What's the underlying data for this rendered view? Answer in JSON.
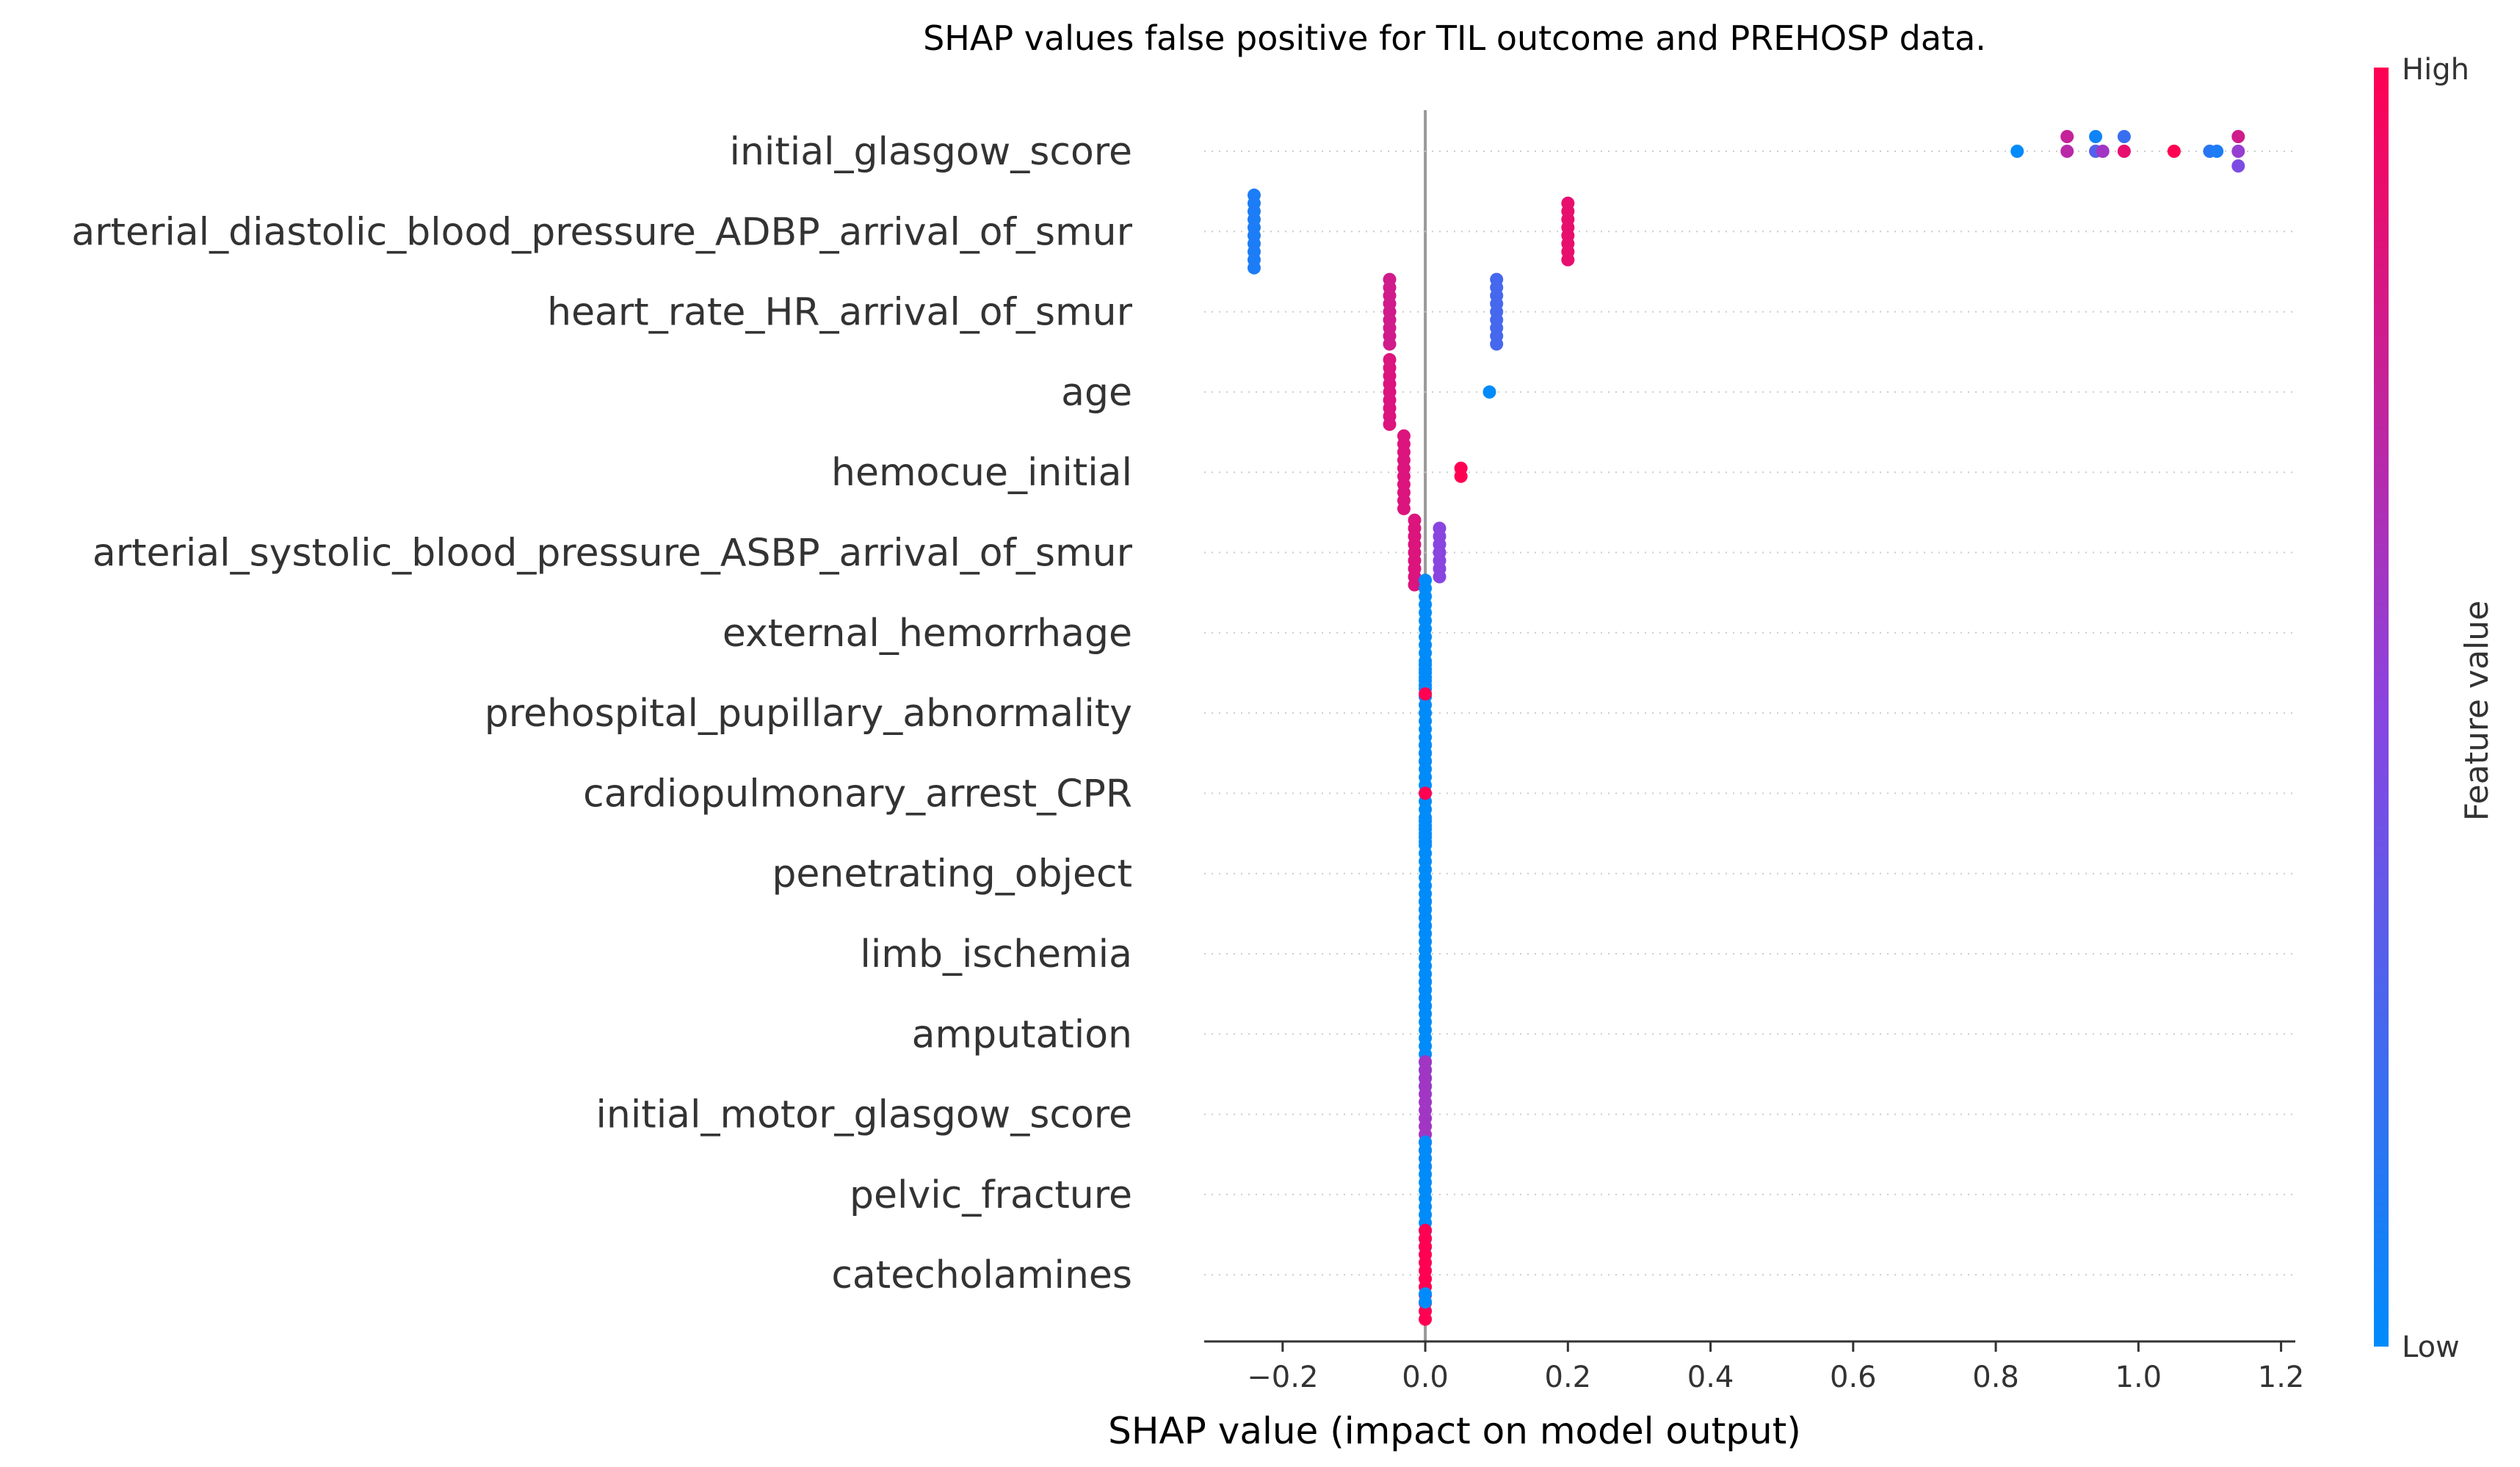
{
  "chart_data": {
    "type": "scatter",
    "title": "SHAP values false positive for TIL outcome and PREHOSP data.",
    "xlabel": "SHAP value (impact on model output)",
    "xlim": [
      -0.31,
      1.22
    ],
    "xticks": [
      -0.2,
      0.0,
      0.2,
      0.4,
      0.6,
      0.8,
      1.0,
      1.2
    ],
    "xtick_labels": [
      "−0.2",
      "0.0",
      "0.2",
      "0.4",
      "0.6",
      "0.8",
      "1.0",
      "1.2"
    ],
    "colorbar": {
      "title": "Feature value",
      "high_label": "High",
      "low_label": "Low",
      "low_color": "#008bfb",
      "high_color": "#ff0052"
    },
    "grid": "dotted horizontal guides",
    "features": [
      {
        "name": "initial_glasgow_score",
        "points": [
          {
            "x": 0.83,
            "c": 0.0
          },
          {
            "x": 0.9,
            "c": 0.75
          },
          {
            "x": 0.9,
            "c": 0.7
          },
          {
            "x": 0.94,
            "c": 0.05
          },
          {
            "x": 0.94,
            "c": 0.3
          },
          {
            "x": 0.95,
            "c": 0.6
          },
          {
            "x": 0.98,
            "c": 0.2
          },
          {
            "x": 0.98,
            "c": 0.9
          },
          {
            "x": 1.05,
            "c": 1.0
          },
          {
            "x": 1.1,
            "c": 0.15
          },
          {
            "x": 1.11,
            "c": 0.1
          },
          {
            "x": 1.14,
            "c": 0.8
          },
          {
            "x": 1.14,
            "c": 0.55
          },
          {
            "x": 1.14,
            "c": 0.45
          }
        ]
      },
      {
        "name": "arterial_diastolic_blood_pressure_ADBP_arrival_of_smur",
        "points": [
          {
            "x": -0.24,
            "c": 0.1,
            "n": 10
          },
          {
            "x": 0.2,
            "c": 0.9,
            "n": 8
          }
        ]
      },
      {
        "name": "heart_rate_HR_arrival_of_smur",
        "points": [
          {
            "x": -0.05,
            "c": 0.8,
            "n": 9
          },
          {
            "x": 0.1,
            "c": 0.25,
            "n": 9
          }
        ]
      },
      {
        "name": "age",
        "points": [
          {
            "x": -0.05,
            "c": 0.85,
            "n": 9
          },
          {
            "x": 0.09,
            "c": 0.0,
            "n": 1
          }
        ]
      },
      {
        "name": "hemocue_initial",
        "points": [
          {
            "x": -0.03,
            "c": 0.85,
            "n": 10
          },
          {
            "x": 0.05,
            "c": 1.0,
            "n": 2
          }
        ]
      },
      {
        "name": "arterial_systolic_blood_pressure_ASBP_arrival_of_smur",
        "points": [
          {
            "x": -0.015,
            "c": 0.85,
            "n": 9
          },
          {
            "x": 0.02,
            "c": 0.5,
            "n": 7
          }
        ]
      },
      {
        "name": "external_hemorrhage",
        "points": [
          {
            "x": 0.0,
            "c": 0.0,
            "n": 14
          }
        ]
      },
      {
        "name": "prehospital_pupillary_abnormality",
        "points": [
          {
            "x": 0.0,
            "c": 0.0,
            "n": 13
          },
          {
            "x": 0.0,
            "c": 1.0,
            "n": 1,
            "pos": "top"
          }
        ]
      },
      {
        "name": "cardiopulmonary_arrest_CPR",
        "points": [
          {
            "x": 0.0,
            "c": 0.0,
            "n": 13
          },
          {
            "x": 0.0,
            "c": 1.0,
            "n": 1,
            "pos": "mid"
          }
        ]
      },
      {
        "name": "penetrating_object",
        "points": [
          {
            "x": 0.0,
            "c": 0.0,
            "n": 14
          }
        ]
      },
      {
        "name": "limb_ischemia",
        "points": [
          {
            "x": 0.0,
            "c": 0.0,
            "n": 14
          }
        ]
      },
      {
        "name": "amputation",
        "points": [
          {
            "x": 0.0,
            "c": 0.0,
            "n": 14
          }
        ]
      },
      {
        "name": "initial_motor_glasgow_score",
        "points": [
          {
            "x": 0.0,
            "c": 0.6,
            "n": 14
          }
        ]
      },
      {
        "name": "pelvic_fracture",
        "points": [
          {
            "x": 0.0,
            "c": 0.0,
            "n": 14
          }
        ]
      },
      {
        "name": "catecholamines",
        "points": [
          {
            "x": 0.0,
            "c": 1.0,
            "n": 12
          },
          {
            "x": 0.0,
            "c": 0.0,
            "n": 2,
            "pos": "bottom"
          }
        ]
      }
    ]
  }
}
